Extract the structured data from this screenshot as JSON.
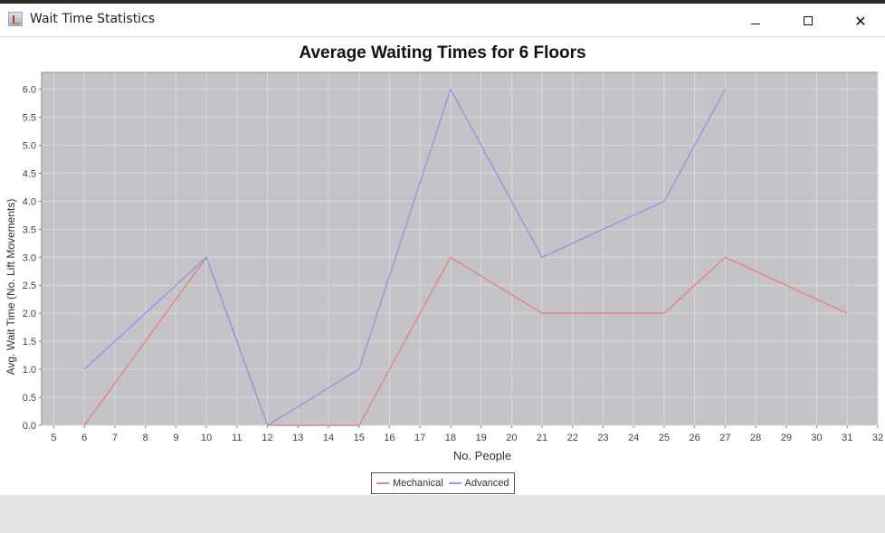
{
  "window": {
    "title": "Wait Time Statistics",
    "icon": "java-cup-icon",
    "controls": {
      "minimize": "minimize-icon",
      "maximize": "maximize-icon",
      "close": "close-icon"
    }
  },
  "colors": {
    "plot_background": "#c4c4c8",
    "grid": "#d9d9dd",
    "mechanical": "#e08a8a",
    "advanced": "#9a9ae0"
  },
  "chart_data": {
    "type": "line",
    "title": "Average Waiting Times for 6 Floors",
    "xlabel": "No. People",
    "ylabel": "Avg. Wait Time (No. Lift Movements)",
    "xlim": [
      4.6,
      32
    ],
    "ylim": [
      0,
      6.3
    ],
    "xticks": [
      5,
      6,
      7,
      8,
      9,
      10,
      11,
      12,
      13,
      14,
      15,
      16,
      17,
      18,
      19,
      20,
      21,
      22,
      23,
      24,
      25,
      26,
      27,
      28,
      29,
      30,
      31,
      32
    ],
    "yticks": [
      "0.0",
      "0.5",
      "1.0",
      "1.5",
      "2.0",
      "2.5",
      "3.0",
      "3.5",
      "4.0",
      "4.5",
      "5.0",
      "5.5",
      "6.0"
    ],
    "grid": true,
    "legend_position": "bottom-center",
    "series": [
      {
        "name": "Mechanical",
        "x": [
          6,
          10,
          12,
          15,
          18,
          21,
          25,
          27,
          31
        ],
        "y": [
          0,
          3,
          0,
          0,
          3,
          2,
          2,
          3,
          2
        ]
      },
      {
        "name": "Advanced",
        "x": [
          6,
          10,
          12,
          15,
          18,
          21,
          25,
          27
        ],
        "y": [
          1,
          3,
          0,
          1,
          6,
          3,
          4,
          6
        ]
      }
    ]
  }
}
